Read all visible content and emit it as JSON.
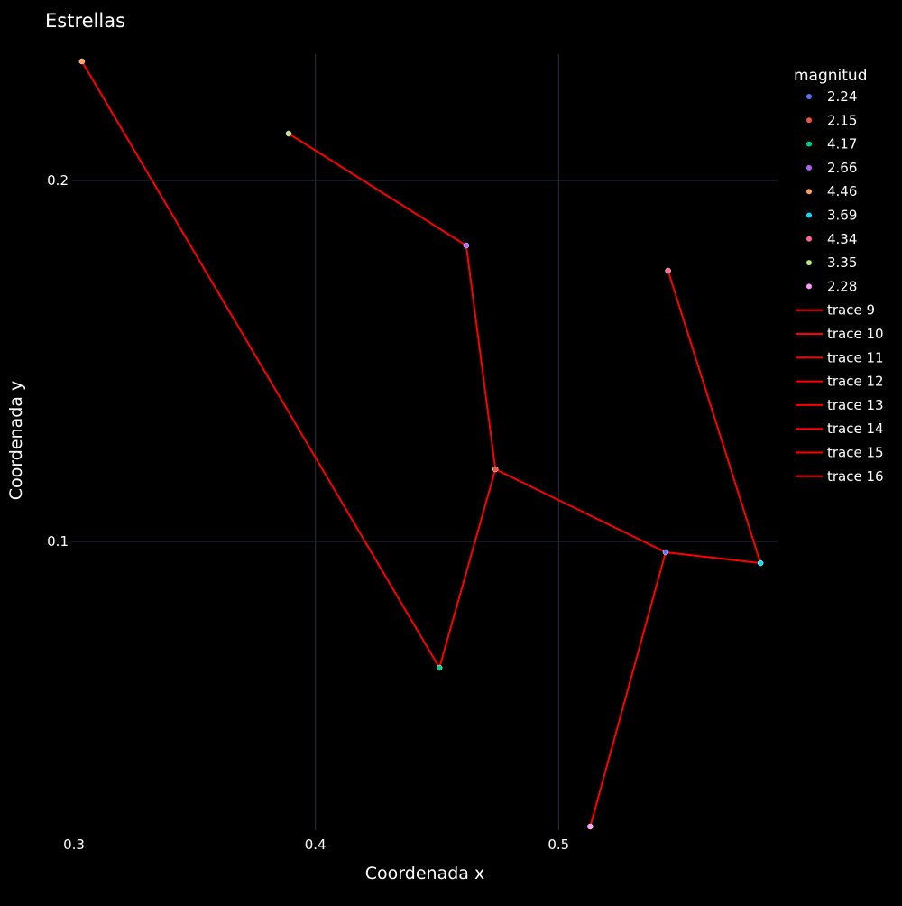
{
  "chart_data": {
    "type": "scatter",
    "title": "Estrellas",
    "xlabel": "Coordenada x",
    "ylabel": "Coordenada y",
    "xlim": [
      0.3,
      0.59
    ],
    "ylim": [
      0.02,
      0.235
    ],
    "x_ticks": [
      {
        "value": 0.3,
        "label": "0.3"
      },
      {
        "value": 0.4,
        "label": "0.4"
      },
      {
        "value": 0.5,
        "label": "0.5"
      }
    ],
    "y_ticks": [
      {
        "value": 0.1,
        "label": "0.1"
      },
      {
        "value": 0.2,
        "label": "0.2"
      }
    ],
    "grid": true,
    "legend_title": "magnitud",
    "legend_position": "right",
    "points": [
      {
        "magnitud": "2.24",
        "x": 0.544,
        "y": 0.097,
        "color": "#636efa"
      },
      {
        "magnitud": "2.15",
        "x": 0.474,
        "y": 0.12,
        "color": "#ef553b"
      },
      {
        "magnitud": "4.17",
        "x": 0.451,
        "y": 0.065,
        "color": "#00cc96"
      },
      {
        "magnitud": "2.66",
        "x": 0.462,
        "y": 0.182,
        "color": "#ab63fa"
      },
      {
        "magnitud": "4.46",
        "x": 0.304,
        "y": 0.233,
        "color": "#ffa15a"
      },
      {
        "magnitud": "3.69",
        "x": 0.583,
        "y": 0.094,
        "color": "#19d3f3"
      },
      {
        "magnitud": "4.34",
        "x": 0.545,
        "y": 0.175,
        "color": "#ff6692"
      },
      {
        "magnitud": "3.35",
        "x": 0.389,
        "y": 0.213,
        "color": "#b6e880"
      },
      {
        "magnitud": "2.28",
        "x": 0.513,
        "y": 0.021,
        "color": "#ff97ff"
      }
    ],
    "line_color": "#ff0000",
    "traces": [
      {
        "name": "trace 9",
        "x": [
          0.304,
          0.451
        ],
        "y": [
          0.233,
          0.065
        ]
      },
      {
        "name": "trace 10",
        "x": [
          0.451,
          0.474
        ],
        "y": [
          0.065,
          0.12
        ]
      },
      {
        "name": "trace 11",
        "x": [
          0.474,
          0.462
        ],
        "y": [
          0.12,
          0.182
        ]
      },
      {
        "name": "trace 12",
        "x": [
          0.462,
          0.389
        ],
        "y": [
          0.182,
          0.213
        ]
      },
      {
        "name": "trace 13",
        "x": [
          0.474,
          0.544
        ],
        "y": [
          0.12,
          0.097
        ]
      },
      {
        "name": "trace 14",
        "x": [
          0.544,
          0.513
        ],
        "y": [
          0.097,
          0.021
        ]
      },
      {
        "name": "trace 15",
        "x": [
          0.544,
          0.583
        ],
        "y": [
          0.097,
          0.094
        ]
      },
      {
        "name": "trace 16",
        "x": [
          0.583,
          0.545
        ],
        "y": [
          0.094,
          0.175
        ]
      }
    ]
  }
}
